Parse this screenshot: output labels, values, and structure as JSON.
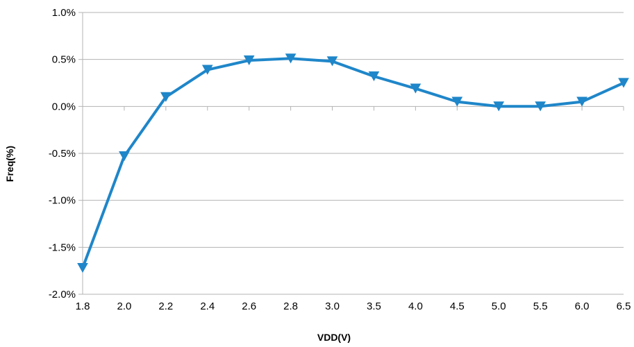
{
  "chart_data": {
    "type": "line",
    "title": "",
    "xlabel": "VDD(V)",
    "ylabel": "Freq(%)",
    "categories": [
      "1.8",
      "2.0",
      "2.2",
      "2.4",
      "2.6",
      "2.8",
      "3.0",
      "3.5",
      "4.0",
      "4.5",
      "5.0",
      "5.5",
      "6.0",
      "6.5"
    ],
    "series": [
      {
        "values": [
          -1.72,
          -0.53,
          0.1,
          0.39,
          0.49,
          0.51,
          0.48,
          0.32,
          0.19,
          0.05,
          0.0,
          0.0,
          0.05,
          0.25
        ]
      }
    ],
    "ylim": [
      -2.0,
      1.0
    ],
    "yticks": [
      -2.0,
      -1.5,
      -1.0,
      -0.5,
      0.0,
      0.5,
      1.0
    ],
    "ytick_labels": [
      "-2.0%",
      "-1.5%",
      "-1.0%",
      "-0.5%",
      "0.0%",
      "0.5%",
      "1.0%"
    ],
    "grid": true,
    "legend": "none",
    "colors": {
      "series": "#1f86c9",
      "grid": "#b3b3b3",
      "axis": "#b3b3b3"
    },
    "marker": "triangle-down"
  }
}
